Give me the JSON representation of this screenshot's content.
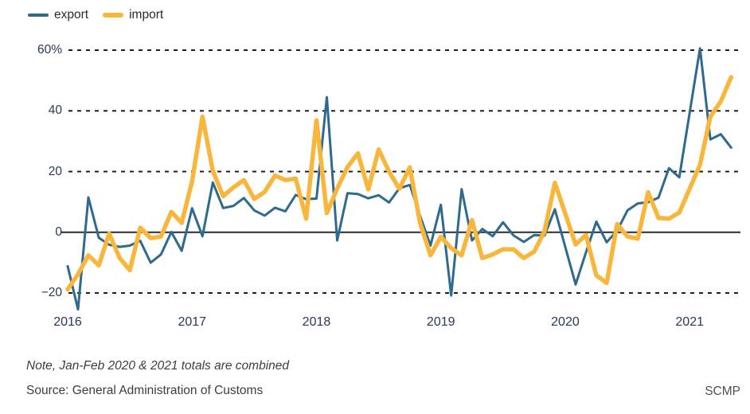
{
  "legend": {
    "items": [
      {
        "name": "export",
        "label": "export",
        "color": "#2d6a8e"
      },
      {
        "name": "import",
        "label": "import",
        "color": "#f8b73c"
      }
    ]
  },
  "footer": {
    "note": "Note, Jan-Feb 2020 & 2021 totals are combined",
    "source": "Source: General Administration of Customs",
    "credit": "SCMP"
  },
  "colors": {
    "export": "#2d6a8e",
    "import": "#f8b73c",
    "axis_text": "#28375a",
    "grid": "#1f1f1f",
    "zero_line": "#2b2b2b",
    "footer_text": "#3d3d3d",
    "background": "#ffffff"
  },
  "chart_data": {
    "type": "line",
    "title": "",
    "unit": "%",
    "ylim": [
      -30,
      65
    ],
    "grid": "horizontal dashed",
    "legend_position": "top-left",
    "legend_entries": [
      "export",
      "import"
    ],
    "annotation": "Note, Jan-Feb 2020 & 2021 totals are combined",
    "y_ticks": [
      {
        "label": "60%",
        "value": 60
      },
      {
        "label": "40",
        "value": 40
      },
      {
        "label": "20",
        "value": 20
      },
      {
        "label": "0",
        "value": 0
      },
      {
        "label": "−20",
        "value": -20
      }
    ],
    "x_ticks": [
      {
        "label": "2016",
        "month_index": 0
      },
      {
        "label": "2017",
        "month_index": 12
      },
      {
        "label": "2018",
        "month_index": 24
      },
      {
        "label": "2019",
        "month_index": 36
      },
      {
        "label": "2020",
        "month_index": 48
      },
      {
        "label": "2021",
        "month_index": 60
      }
    ],
    "x": [
      "Jan 2016",
      "Feb 2016",
      "Mar 2016",
      "Apr 2016",
      "May 2016",
      "Jun 2016",
      "Jul 2016",
      "Aug 2016",
      "Sep 2016",
      "Oct 2016",
      "Nov 2016",
      "Dec 2016",
      "Jan 2017",
      "Feb 2017",
      "Mar 2017",
      "Apr 2017",
      "May 2017",
      "Jun 2017",
      "Jul 2017",
      "Aug 2017",
      "Sep 2017",
      "Oct 2017",
      "Nov 2017",
      "Dec 2017",
      "Jan 2018",
      "Feb 2018",
      "Mar 2018",
      "Apr 2018",
      "May 2018",
      "Jun 2018",
      "Jul 2018",
      "Aug 2018",
      "Sep 2018",
      "Oct 2018",
      "Nov 2018",
      "Dec 2018",
      "Jan 2019",
      "Feb 2019",
      "Mar 2019",
      "Apr 2019",
      "May 2019",
      "Jun 2019",
      "Jul 2019",
      "Aug 2019",
      "Sep 2019",
      "Oct 2019",
      "Nov 2019",
      "Dec 2019",
      "Jan-Feb 2020",
      "Mar 2020",
      "Apr 2020",
      "May 2020",
      "Jun 2020",
      "Jul 2020",
      "Aug 2020",
      "Sep 2020",
      "Oct 2020",
      "Nov 2020",
      "Dec 2020",
      "Jan-Feb 2021",
      "Mar 2021",
      "Apr 2021",
      "May 2021"
    ],
    "month_index": [
      0,
      1,
      2,
      3,
      4,
      5,
      6,
      7,
      8,
      9,
      10,
      11,
      12,
      13,
      14,
      15,
      16,
      17,
      18,
      19,
      20,
      21,
      22,
      23,
      24,
      25,
      26,
      27,
      28,
      29,
      30,
      31,
      32,
      33,
      34,
      35,
      36,
      37,
      38,
      39,
      40,
      41,
      42,
      43,
      44,
      45,
      46,
      47,
      49,
      50,
      51,
      52,
      53,
      54,
      55,
      56,
      57,
      58,
      59,
      61,
      62,
      63,
      64
    ],
    "series": [
      {
        "name": "export",
        "values": [
          -11.2,
          -25.4,
          11.5,
          -1.8,
          -4.1,
          -4.8,
          -4.4,
          -2.8,
          -10.0,
          -7.3,
          0.1,
          -6.1,
          7.9,
          -1.3,
          16.4,
          8.0,
          8.7,
          11.3,
          7.2,
          5.5,
          8.1,
          6.9,
          12.3,
          10.9,
          11.1,
          44.5,
          -2.7,
          12.9,
          12.6,
          11.2,
          12.2,
          9.8,
          14.5,
          15.6,
          5.4,
          -4.4,
          9.1,
          -20.8,
          14.2,
          -2.7,
          1.1,
          -1.3,
          3.3,
          -1.0,
          -3.2,
          -0.9,
          -1.1,
          7.6,
          -17.2,
          -6.6,
          3.5,
          -3.3,
          0.5,
          7.2,
          9.5,
          9.9,
          11.4,
          21.1,
          18.1,
          60.6,
          30.6,
          32.3,
          27.9
        ]
      },
      {
        "name": "import",
        "values": [
          -18.8,
          -13.8,
          -7.6,
          -10.9,
          -0.4,
          -8.4,
          -12.5,
          1.5,
          -1.9,
          -1.4,
          6.7,
          3.1,
          16.7,
          38.1,
          20.3,
          11.9,
          14.8,
          17.2,
          11.0,
          13.3,
          18.7,
          17.2,
          17.7,
          4.5,
          36.9,
          6.3,
          14.4,
          21.5,
          26.0,
          14.1,
          27.3,
          20.0,
          14.3,
          21.4,
          3.0,
          -7.6,
          -1.5,
          -5.2,
          -7.6,
          4.0,
          -8.5,
          -7.3,
          -5.6,
          -5.6,
          -8.5,
          -6.4,
          0.3,
          16.3,
          -4.0,
          -0.9,
          -14.2,
          -16.7,
          2.7,
          -1.4,
          -2.1,
          13.2,
          4.7,
          4.5,
          6.5,
          22.2,
          38.1,
          43.1,
          51.1
        ]
      }
    ]
  }
}
